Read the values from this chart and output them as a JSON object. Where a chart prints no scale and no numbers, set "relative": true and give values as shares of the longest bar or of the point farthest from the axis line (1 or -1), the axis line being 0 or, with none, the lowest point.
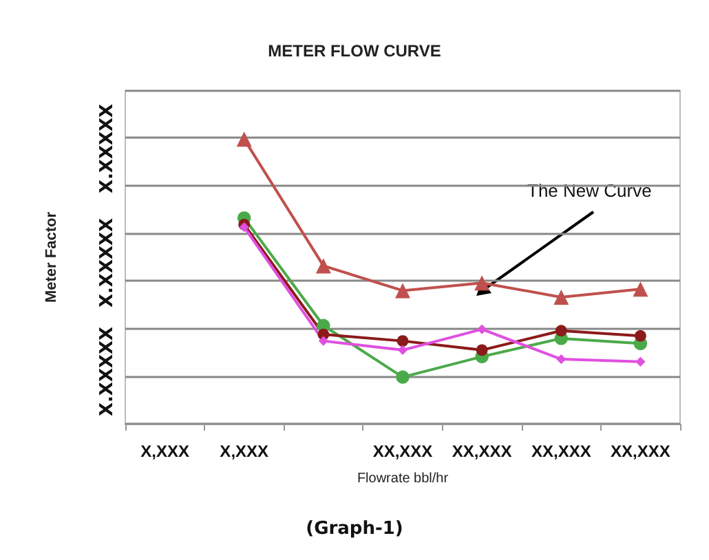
{
  "chart_data": {
    "type": "line",
    "title": "METER FLOW CURVE",
    "xlabel": "Flowrate bbl/hr",
    "ylabel": "Meter Factor",
    "relative": true,
    "grid": "y",
    "line_style": "solid",
    "categories": [
      "X,XXX",
      "X,XXX",
      null,
      "XX,XXX",
      "XX,XXX",
      "XX,XXX",
      "XX,XXX"
    ],
    "series": [
      {
        "color": "#c0504d",
        "marker": "triangle",
        "values": [
          null,
          1.0,
          0.555,
          0.468,
          0.495,
          0.445,
          0.473
        ]
      },
      {
        "color": "#4aaa4a",
        "marker": "circle",
        "values": [
          null,
          0.723,
          0.345,
          0.164,
          0.236,
          0.3,
          0.282
        ]
      },
      {
        "color": "#8b1a1a",
        "marker": "circle",
        "values": [
          null,
          0.7,
          0.314,
          0.291,
          0.259,
          0.327,
          0.309
        ]
      },
      {
        "color": "#e050e0",
        "marker": "diamond",
        "values": [
          null,
          0.691,
          0.291,
          0.259,
          0.332,
          0.227,
          0.218
        ]
      }
    ],
    "annotations": [
      "The New Curve",
      "X.XXXXX",
      "X.XXXXX",
      "X.XXXXX",
      "(Graph-1)"
    ]
  }
}
